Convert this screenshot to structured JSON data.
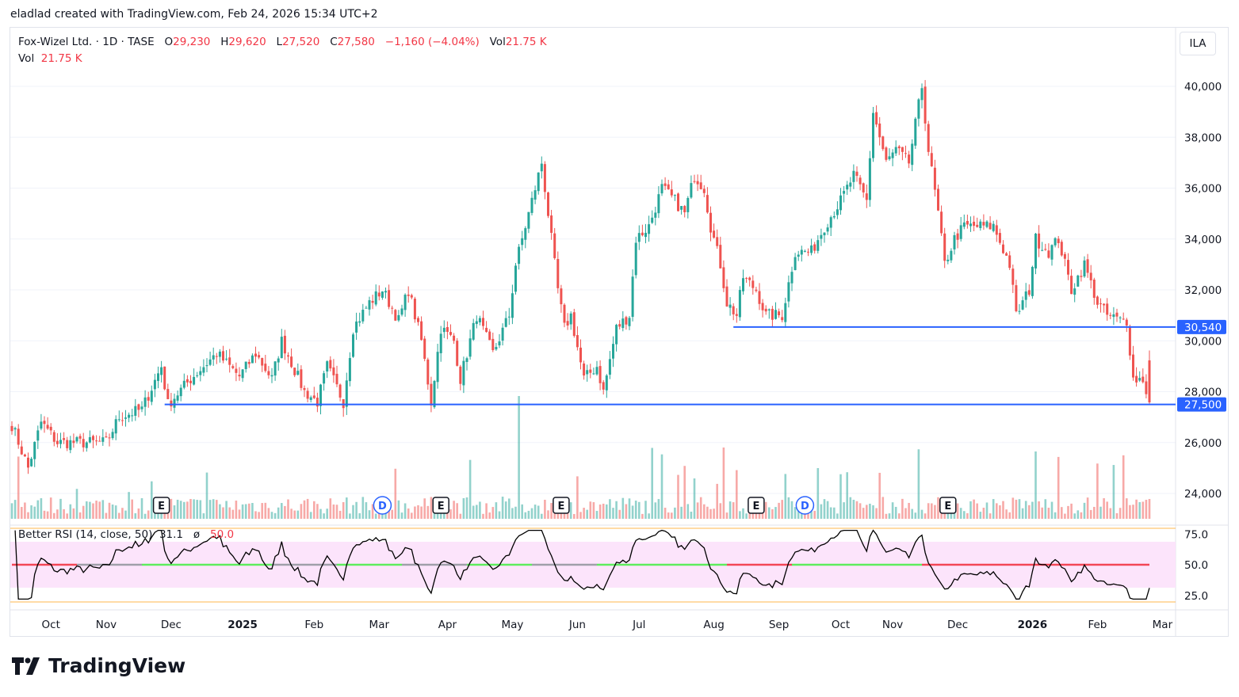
{
  "caption": "eladlad created with TradingView.com, Feb 24, 2026 15:34 UTC+2",
  "legend": {
    "symbol": "Fox-Wizel Ltd. · 1D · TASE",
    "o_label": "O",
    "o": "29,230",
    "h_label": "H",
    "h": "29,620",
    "l_label": "L",
    "l": "27,520",
    "c_label": "C",
    "c": "27,580",
    "change": "−1,160 (−4.04%)",
    "vol_label": "Vol",
    "vol": "21.75 K",
    "vol2_label": "Vol",
    "vol2": "21.75 K"
  },
  "currency": "ILA",
  "rsi_legend": {
    "name": "Better RSI (14, close, 50)",
    "value": "31.1",
    "sep": "ø",
    "mid": "50.0"
  },
  "brand": "TradingView",
  "colors": {
    "up": "#26a69a",
    "down": "#ef5350",
    "line": "#2962ff",
    "rsi_band": "#fce4fb",
    "rsi_up": "#4cee4c",
    "rsi_down": "#f23645"
  },
  "chart_data": {
    "type": "candlestick",
    "title": "Fox-Wizel Ltd. · 1D · TASE",
    "ylim": [
      23500,
      40500
    ],
    "y_ticks": [
      "40,000",
      "38,000",
      "36,000",
      "34,000",
      "32,000",
      "30,000",
      "28,000",
      "26,000",
      "24,000"
    ],
    "y_tick_values": [
      40000,
      38000,
      36000,
      34000,
      32000,
      30000,
      28000,
      26000,
      24000
    ],
    "sessions": 351,
    "close_path": [
      [
        0,
        26700
      ],
      [
        5,
        25000
      ],
      [
        9,
        26800
      ],
      [
        14,
        26000
      ],
      [
        21,
        26000
      ],
      [
        29,
        26000
      ],
      [
        33,
        27000
      ],
      [
        40,
        27300
      ],
      [
        46,
        29000
      ],
      [
        48,
        27500
      ],
      [
        55,
        28500
      ],
      [
        63,
        29500
      ],
      [
        70,
        28600
      ],
      [
        75,
        29500
      ],
      [
        80,
        28500
      ],
      [
        83,
        30000
      ],
      [
        90,
        28000
      ],
      [
        94,
        27600
      ],
      [
        97,
        29000
      ],
      [
        102,
        27600
      ],
      [
        105,
        30500
      ],
      [
        110,
        31500
      ],
      [
        114,
        32000
      ],
      [
        119,
        30800
      ],
      [
        122,
        32000
      ],
      [
        126,
        30000
      ],
      [
        129,
        27600
      ],
      [
        132,
        30500
      ],
      [
        136,
        30000
      ],
      [
        138,
        28500
      ],
      [
        143,
        31000
      ],
      [
        148,
        29500
      ],
      [
        153,
        31000
      ],
      [
        155,
        33000
      ],
      [
        159,
        35000
      ],
      [
        163,
        37000
      ],
      [
        165,
        35000
      ],
      [
        168,
        32000
      ],
      [
        170,
        30500
      ],
      [
        172,
        31000
      ],
      [
        176,
        28500
      ],
      [
        180,
        29000
      ],
      [
        182,
        28000
      ],
      [
        186,
        30500
      ],
      [
        190,
        31000
      ],
      [
        192,
        34000
      ],
      [
        196,
        34500
      ],
      [
        200,
        36000
      ],
      [
        204,
        35500
      ],
      [
        207,
        35000
      ],
      [
        210,
        36500
      ],
      [
        213,
        36000
      ],
      [
        215,
        34500
      ],
      [
        218,
        33000
      ],
      [
        220,
        31500
      ],
      [
        223,
        31000
      ],
      [
        225,
        32500
      ],
      [
        229,
        32000
      ],
      [
        232,
        31000
      ],
      [
        237,
        31000
      ],
      [
        241,
        33500
      ],
      [
        246,
        33500
      ],
      [
        250,
        34500
      ],
      [
        255,
        35500
      ],
      [
        259,
        36500
      ],
      [
        263,
        35500
      ],
      [
        265,
        39000
      ],
      [
        269,
        37000
      ],
      [
        272,
        37500
      ],
      [
        276,
        37000
      ],
      [
        280,
        40000
      ],
      [
        282,
        37500
      ],
      [
        285,
        35000
      ],
      [
        287,
        33000
      ],
      [
        290,
        34000
      ],
      [
        293,
        34500
      ],
      [
        297,
        34500
      ],
      [
        302,
        34500
      ],
      [
        307,
        33000
      ],
      [
        309,
        31000
      ],
      [
        313,
        32000
      ],
      [
        315,
        34000
      ],
      [
        319,
        33500
      ],
      [
        322,
        34000
      ],
      [
        326,
        32000
      ],
      [
        330,
        33000
      ],
      [
        334,
        31500
      ],
      [
        337,
        31000
      ],
      [
        341,
        30800
      ],
      [
        343,
        30800
      ],
      [
        345,
        28500
      ],
      [
        348,
        28500
      ],
      [
        350,
        27580
      ]
    ],
    "last_ohlc": {
      "open": 29230,
      "high": 29620,
      "low": 27520,
      "close": 27580
    },
    "horizontal_lines": [
      {
        "price": 30540,
        "label": "30,540",
        "from_session": 222
      },
      {
        "price": 27500,
        "label": "27,500",
        "from_session": 47
      }
    ],
    "events": [
      {
        "session": 46,
        "label": "E"
      },
      {
        "session": 114,
        "label": "D"
      },
      {
        "session": 132,
        "label": "E"
      },
      {
        "session": 169,
        "label": "E"
      },
      {
        "session": 229,
        "label": "E"
      },
      {
        "session": 244,
        "label": "D"
      },
      {
        "session": 288,
        "label": "E"
      }
    ],
    "x_ticks": [
      {
        "label": "Oct",
        "session": 12
      },
      {
        "label": "Nov",
        "session": 29
      },
      {
        "label": "Dec",
        "session": 49
      },
      {
        "label": "2025",
        "session": 71,
        "bold": true
      },
      {
        "label": "Feb",
        "session": 93
      },
      {
        "label": "Mar",
        "session": 113
      },
      {
        "label": "Apr",
        "session": 134
      },
      {
        "label": "May",
        "session": 154
      },
      {
        "label": "Jun",
        "session": 174
      },
      {
        "label": "Jul",
        "session": 193
      },
      {
        "label": "Aug",
        "session": 216
      },
      {
        "label": "Sep",
        "session": 236
      },
      {
        "label": "Oct",
        "session": 255
      },
      {
        "label": "Nov",
        "session": 271
      },
      {
        "label": "Dec",
        "session": 291
      },
      {
        "label": "2026",
        "session": 314,
        "bold": true
      },
      {
        "label": "Feb",
        "session": 334
      },
      {
        "label": "Mar",
        "session": 354
      }
    ],
    "rsi": {
      "period": 14,
      "ylim": [
        20,
        80
      ],
      "y_ticks": [
        "75.0",
        "50.0",
        "25.0"
      ],
      "y_tick_values": [
        75,
        50,
        25
      ],
      "band": [
        30,
        70
      ],
      "current": 31.1
    }
  }
}
